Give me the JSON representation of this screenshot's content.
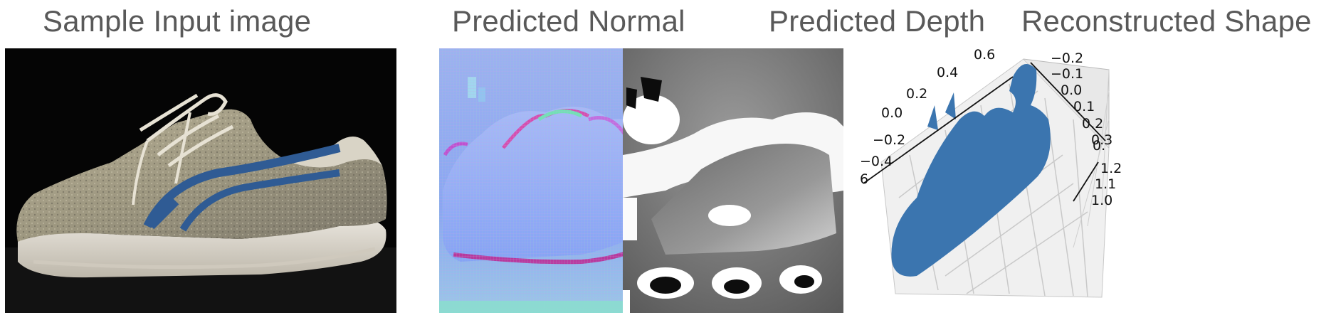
{
  "panels": [
    {
      "title": "Sample Input image",
      "content": "photo of an ASICS running shoe"
    },
    {
      "title": "Predicted Normal",
      "content": "surface normal map"
    },
    {
      "title": "Predicted Depth",
      "content": "grayscale depth map"
    },
    {
      "title": "Reconstructed Shape",
      "content": "3D point cloud plot"
    }
  ],
  "plot3d": {
    "axis_a_ticks": [
      "0.6",
      "0.4",
      "0.2",
      "0.0",
      "−0.2",
      "−0.4",
      "6"
    ],
    "axis_b_ticks": [
      "−0.2",
      "−0.1",
      "0.0",
      "0.1",
      "0.2",
      "0.3"
    ],
    "axis_c_ticks": [
      "1.2",
      "1.1",
      "1.0",
      "0."
    ],
    "point_color": "#3b75af"
  },
  "colors": {
    "title_text": "#595959",
    "normal_base": "#8aa6f2",
    "depth_mid": "#8c8c8c"
  }
}
